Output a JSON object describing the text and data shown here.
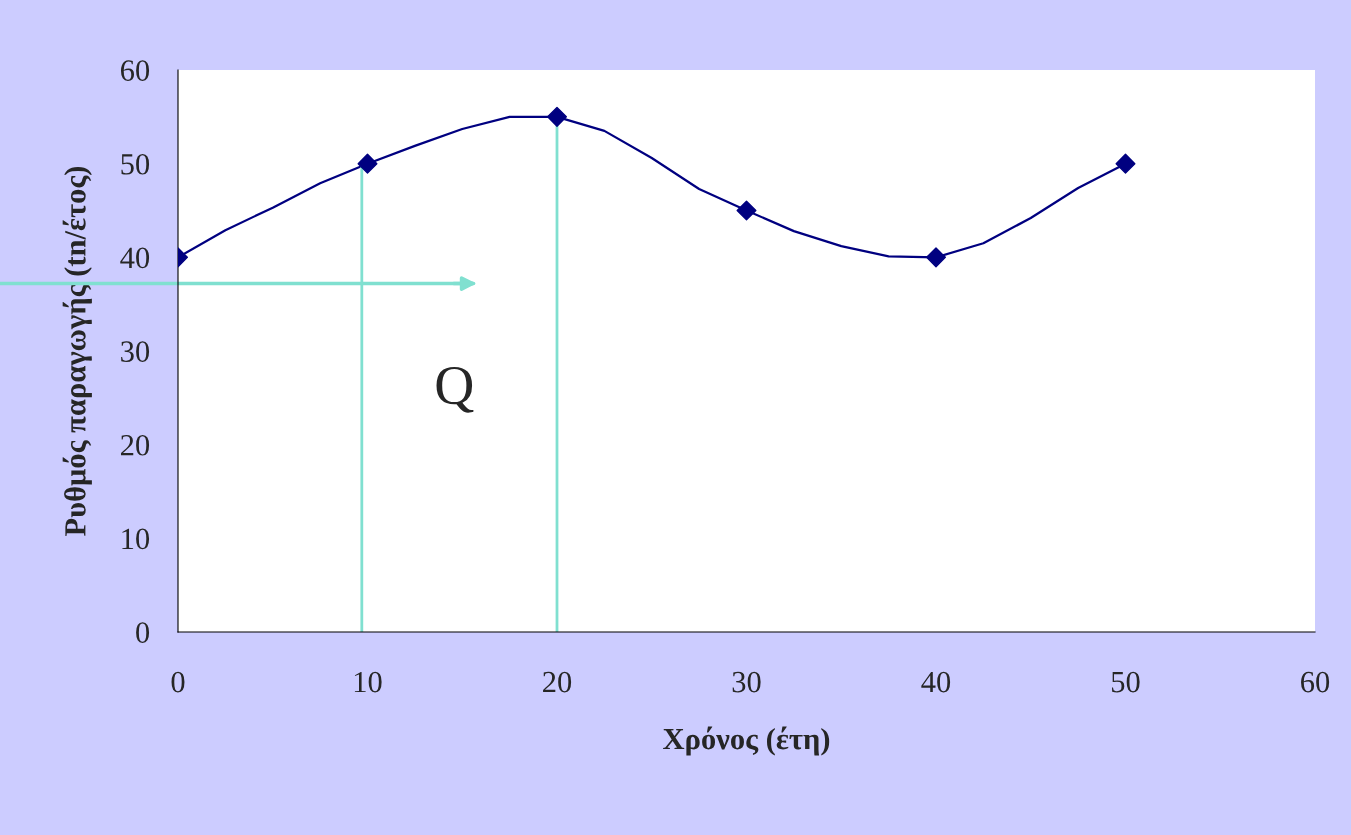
{
  "chart_data": {
    "type": "line",
    "xlabel": "Χρόνος (έτη)",
    "ylabel": "Ρυθμός παραγωγής (tn/έτος)",
    "series": [
      {
        "marker": "none",
        "color": "#000080",
        "x": [
          0,
          2.5,
          5,
          7.5,
          10,
          12.5,
          15,
          17.5,
          20,
          22.5,
          25,
          27.5,
          30,
          32.5,
          35,
          37.5,
          40,
          42.5,
          45,
          47.5,
          50
        ],
        "values": [
          40,
          42.9,
          45.3,
          47.9,
          50,
          51.9,
          53.7,
          55,
          55,
          53.5,
          50.6,
          47.3,
          45,
          42.8,
          41.2,
          40.1,
          40,
          41.5,
          44.2,
          47.4,
          50
        ]
      },
      {
        "type": "scatter",
        "marker": "diamond",
        "color": "#000080",
        "x": [
          0,
          10,
          20,
          30,
          40,
          50
        ],
        "values": [
          40,
          50,
          55,
          45,
          40,
          50
        ]
      }
    ],
    "line_style": "solid",
    "grid": false,
    "legend": false,
    "xlim": [
      0,
      60
    ],
    "xticks": [
      0,
      10,
      20,
      30,
      40,
      50,
      60
    ],
    "ylim": [
      0,
      60
    ],
    "yticks": [
      0,
      10,
      20,
      30,
      40,
      50,
      60
    ],
    "ref_lines": [
      {
        "axis": "x",
        "value": 9.7,
        "color": "#80e0d0"
      },
      {
        "axis": "x",
        "value": 20,
        "color": "#80e0d0"
      },
      {
        "axis": "y",
        "value": 37.2,
        "color": "#80e0d0"
      }
    ],
    "annotations": [
      "Q"
    ]
  }
}
